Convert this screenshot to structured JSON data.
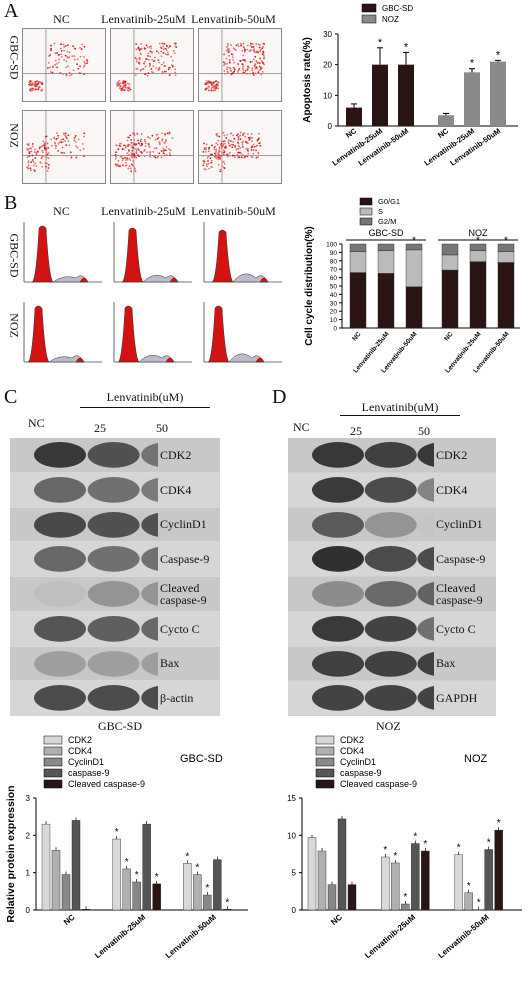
{
  "panel_labels": {
    "A": "A",
    "B": "B",
    "C": "C",
    "D": "D"
  },
  "panelA": {
    "columns": [
      "NC",
      "Lenvatinib-25uM",
      "Lenvatinib-50uM"
    ],
    "rows": [
      "GBC-SD",
      "NOZ"
    ]
  },
  "panelB": {
    "columns": [
      "NC",
      "Lenvatinib-25uM",
      "Lenvatinib-50uM"
    ],
    "rows": [
      "GBC-SD",
      "NOZ"
    ]
  },
  "panelC": {
    "header_nc": "NC",
    "treatment": "Lenvatinib(uM)",
    "doses": [
      "25",
      "50"
    ],
    "proteins": [
      "CDK2",
      "CDK4",
      "CyclinD1",
      "Caspase-9",
      "Cleaved caspase-9",
      "Cycto C",
      "Bax",
      "β-actin"
    ],
    "cell_line": "GBC-SD"
  },
  "panelD": {
    "header_nc": "NC",
    "treatment": "Lenvatinib(uM)",
    "doses": [
      "25",
      "50"
    ],
    "proteins": [
      "CDK2",
      "CDK4",
      "CyclinD1",
      "Caspase-9",
      "Cleaved caspase-9",
      "Cycto C",
      "Bax",
      "GAPDH"
    ],
    "cell_line": "NOZ"
  },
  "chart_data": [
    {
      "type": "bar",
      "id": "apoptosis",
      "ylabel": "Apoptosis rate(%)",
      "ylim": [
        0,
        30
      ],
      "groups": [
        {
          "name": "GBC-SD",
          "color": "#2a1414",
          "categories": [
            "NC",
            "Lenvatinib-25uM",
            "Lenvatinib-50uM"
          ],
          "values": [
            6,
            20,
            20
          ],
          "errors": [
            1.2,
            5.5,
            4
          ],
          "star": [
            false,
            true,
            true
          ]
        },
        {
          "name": "NOZ",
          "color": "#8a8a8a",
          "categories": [
            "NC",
            "Lenvatinib-25uM",
            "Lenvatinib-50uM"
          ],
          "values": [
            3.5,
            17.5,
            21
          ],
          "errors": [
            0.6,
            1.2,
            0.4
          ],
          "star": [
            false,
            true,
            true
          ]
        }
      ],
      "legend": [
        "GBC-SD",
        "NOZ"
      ]
    },
    {
      "type": "bar",
      "id": "cellcycle",
      "stacked": true,
      "ylabel": "Cell cycle distribution(%)",
      "ylim": [
        0,
        100
      ],
      "yticks": [
        0,
        10,
        20,
        30,
        40,
        50,
        60,
        70,
        80,
        90,
        100
      ],
      "group_labels": [
        "GBC-SD",
        "NOZ"
      ],
      "categories": [
        "NC",
        "Lenvatinib-25uM",
        "Lenvatinib-50uM",
        "NC",
        "Lenvatinib-25uM",
        "Lenvatinib-50uM"
      ],
      "series": [
        {
          "name": "G0/G1",
          "color": "#2a1414",
          "values": [
            66,
            65,
            49,
            69,
            79,
            78
          ]
        },
        {
          "name": "S",
          "color": "#bbbbbb",
          "values": [
            25,
            27,
            44,
            18,
            13,
            13
          ]
        },
        {
          "name": "G2/M",
          "color": "#777777",
          "values": [
            9,
            8,
            7,
            13,
            8,
            9
          ]
        }
      ],
      "stars": [
        false,
        false,
        true,
        false,
        true,
        true
      ]
    },
    {
      "type": "bar",
      "id": "gbc_protein",
      "title": "GBC-SD",
      "ylabel": "Relative protein expression",
      "ylim": [
        0,
        3
      ],
      "yticks": [
        0,
        1,
        2,
        3
      ],
      "categories": [
        "NC",
        "Lenvatinib-25uM",
        "Lenvatinib-50uM"
      ],
      "series": [
        {
          "name": "CDK2",
          "color": "#d8d8d8",
          "values": [
            2.3,
            1.9,
            1.25
          ]
        },
        {
          "name": "CDK4",
          "color": "#b0b0b0",
          "values": [
            1.6,
            1.1,
            0.95
          ]
        },
        {
          "name": "CyclinD1",
          "color": "#888888",
          "values": [
            0.95,
            0.75,
            0.4
          ]
        },
        {
          "name": "caspase-9",
          "color": "#555555",
          "values": [
            2.4,
            2.3,
            1.35
          ]
        },
        {
          "name": "Cleaved caspase-9",
          "color": "#2a1414",
          "values": [
            0.02,
            0.7,
            0.02
          ]
        }
      ],
      "stars": [
        [
          false,
          false,
          false,
          false,
          false
        ],
        [
          true,
          true,
          true,
          false,
          true
        ],
        [
          true,
          true,
          true,
          false,
          true
        ]
      ]
    },
    {
      "type": "bar",
      "id": "noz_protein",
      "title": "NOZ",
      "ylabel": "",
      "ylim": [
        0,
        15
      ],
      "yticks": [
        0,
        5,
        10,
        15
      ],
      "categories": [
        "NC",
        "Lenvatinib-25uM",
        "Lenvatinib-50uM"
      ],
      "series": [
        {
          "name": "CDK2",
          "color": "#d8d8d8",
          "values": [
            9.7,
            7.1,
            7.4
          ]
        },
        {
          "name": "CDK4",
          "color": "#b0b0b0",
          "values": [
            7.9,
            6.3,
            2.3
          ]
        },
        {
          "name": "CyclinD1",
          "color": "#888888",
          "values": [
            3.4,
            0.8,
            0.05
          ]
        },
        {
          "name": "caspase-9",
          "color": "#555555",
          "values": [
            12.2,
            8.9,
            8.1
          ]
        },
        {
          "name": "Cleaved caspase-9",
          "color": "#2a1414",
          "values": [
            3.4,
            7.9,
            10.7
          ]
        }
      ],
      "stars": [
        [
          false,
          false,
          false,
          false,
          false
        ],
        [
          true,
          true,
          true,
          true,
          true
        ],
        [
          true,
          true,
          true,
          true,
          true
        ]
      ]
    }
  ]
}
